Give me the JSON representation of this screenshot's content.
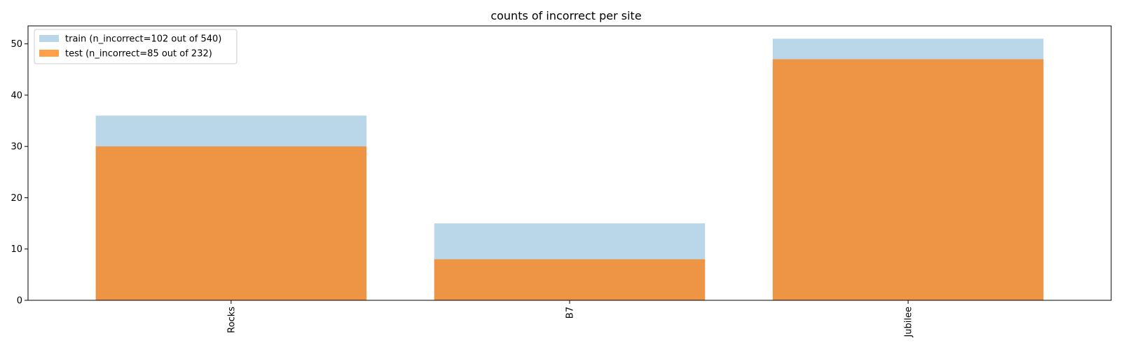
{
  "chart_data": {
    "type": "bar",
    "title": "counts of incorrect per site",
    "xlabel": "",
    "ylabel": "",
    "categories": [
      "Rocks",
      "B7",
      "Jubilee"
    ],
    "series": [
      {
        "name": "train (n_incorrect=102 out of 540)",
        "values": [
          36,
          15,
          51
        ],
        "color": "#bad6e9",
        "alpha": 1.0
      },
      {
        "name": "test (n_incorrect=85 out of 232)",
        "values": [
          30,
          8,
          47
        ],
        "color": "#ff7f0e",
        "alpha": 0.75
      }
    ],
    "ylim": [
      0,
      53.5
    ],
    "yticks": [
      0,
      10,
      20,
      30,
      40,
      50
    ],
    "grid": false,
    "legend_position": "top-left",
    "x_tick_rotation": "vertical",
    "overlay": true
  }
}
